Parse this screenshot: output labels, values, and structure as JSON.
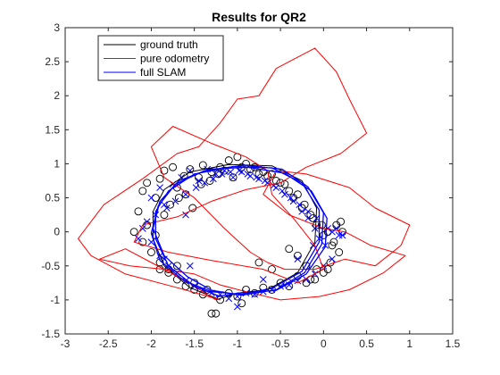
{
  "chart_data": {
    "type": "line",
    "title": "Results for QR2",
    "xlabel": "",
    "ylabel": "",
    "xlim": [
      -3,
      1.5
    ],
    "ylim": [
      -1.5,
      3
    ],
    "xticks": [
      -3,
      -2.5,
      -2,
      -1.5,
      -1,
      -0.5,
      0,
      0.5,
      1,
      1.5
    ],
    "xtick_labels": [
      "-3",
      "-2.5",
      "-2",
      "-1.5",
      "-1",
      "-0.5",
      "0",
      "0.5",
      "1",
      "1.5"
    ],
    "yticks": [
      -1.5,
      -1,
      -0.5,
      0,
      0.5,
      1,
      1.5,
      2,
      2.5,
      3
    ],
    "ytick_labels": [
      "-1.5",
      "-1",
      "-0.5",
      "0",
      "0.5",
      "1",
      "1.5",
      "2",
      "2.5",
      "3"
    ],
    "grid": false,
    "legend_position": "top-left",
    "series": [
      {
        "name": "ground truth",
        "color": "#000000",
        "style": "line",
        "x": [
          -1.2,
          -1.55,
          -1.85,
          -1.98,
          -1.98,
          -1.85,
          -1.55,
          -1.1,
          -0.6,
          -0.25,
          -0.08,
          -0.1,
          -0.3,
          -0.65,
          -1.0,
          -1.25
        ],
        "y": [
          -1.0,
          -0.82,
          -0.5,
          -0.1,
          0.3,
          0.62,
          0.88,
          0.99,
          0.97,
          0.75,
          0.35,
          -0.15,
          -0.6,
          -0.85,
          -0.9,
          -1.0
        ]
      },
      {
        "name": "pure odometry",
        "color": "#ff0000",
        "style": "line",
        "x": [
          -1.2,
          -1.7,
          -2.3,
          -2.7,
          -2.85,
          -2.55,
          -2.1,
          -1.7,
          -1.45,
          -1.2,
          -1.0,
          -0.75,
          -0.55,
          -0.1,
          0.15,
          0.3,
          0.5,
          0.2,
          -0.2,
          -0.5,
          -0.9,
          -1.3,
          -1.7,
          -2.1,
          -2.2,
          -1.8,
          -1.3,
          -0.7,
          -0.3,
          0.0,
          -0.1,
          -0.35,
          -0.6,
          -0.65,
          -0.9,
          -1.3,
          -1.75,
          -2.0,
          -1.85,
          -1.5,
          -1.15,
          -0.85,
          -0.65,
          -0.45,
          -0.1,
          0.25,
          0.6,
          0.9,
          1.0,
          0.6,
          0.3,
          -0.2,
          -0.55,
          -0.7,
          -0.4,
          0.0,
          0.25,
          0.55,
          0.95,
          0.7,
          0.3,
          -0.05,
          -0.5,
          -0.9,
          -1.2,
          -1.5,
          -1.85,
          -2.25,
          -2.6,
          -2.3,
          -2.0,
          -1.6,
          -1.25
        ],
        "y": [
          -1.0,
          -0.82,
          -0.62,
          -0.35,
          -0.1,
          0.4,
          0.78,
          1.15,
          1.25,
          1.6,
          1.95,
          2.0,
          2.4,
          2.7,
          2.35,
          1.95,
          1.45,
          1.15,
          0.95,
          0.72,
          0.62,
          0.45,
          0.22,
          0.1,
          -0.15,
          -0.3,
          -0.42,
          -0.55,
          -0.75,
          -0.55,
          -0.2,
          0.2,
          0.55,
          0.9,
          1.1,
          1.3,
          1.55,
          1.25,
          0.8,
          0.5,
          0.05,
          -0.3,
          -0.45,
          -0.55,
          -0.55,
          -0.4,
          -0.5,
          -0.2,
          0.1,
          0.35,
          0.65,
          0.85,
          0.9,
          0.55,
          0.25,
          0.05,
          0.0,
          -0.2,
          -0.35,
          -0.6,
          -0.85,
          -0.95,
          -1.0,
          -0.88,
          -0.78,
          -0.62,
          -0.55,
          -0.5,
          -0.4,
          -0.25,
          -0.45,
          -0.72,
          -1.0
        ]
      },
      {
        "name": "full SLAM",
        "color": "#0000ff",
        "style": "line",
        "x": [
          -1.2,
          -1.5,
          -1.8,
          -1.95,
          -1.95,
          -1.8,
          -1.5,
          -1.05,
          -0.6,
          -0.25,
          -0.05,
          -0.05,
          -0.25,
          -0.6,
          -0.95,
          -1.3,
          -1.62,
          -1.9,
          -2.0,
          -1.92,
          -1.72,
          -1.38,
          -0.92,
          -0.48,
          -0.18,
          0.0,
          -0.02,
          -0.22,
          -0.55,
          -0.95,
          -1.3,
          -1.58,
          -1.85,
          -1.98,
          -1.9,
          -1.68,
          -1.33,
          -0.88,
          -0.45,
          -0.14,
          0.04,
          0.02,
          -0.2,
          -0.55,
          -0.98,
          -1.25
        ],
        "y": [
          -0.95,
          -0.8,
          -0.5,
          -0.1,
          0.3,
          0.6,
          0.85,
          0.96,
          0.94,
          0.72,
          0.32,
          -0.15,
          -0.58,
          -0.83,
          -0.92,
          -0.88,
          -0.72,
          -0.42,
          -0.02,
          0.38,
          0.7,
          0.9,
          0.98,
          0.92,
          0.66,
          0.28,
          -0.18,
          -0.6,
          -0.85,
          -0.93,
          -0.86,
          -0.66,
          -0.35,
          0.05,
          0.45,
          0.75,
          0.92,
          0.95,
          0.86,
          0.6,
          0.2,
          -0.22,
          -0.62,
          -0.86,
          -0.9,
          -0.95
        ]
      }
    ],
    "markers": [
      {
        "name": "",
        "symbol": "circle",
        "color": "#000000",
        "x": [
          -2.1,
          -2.05,
          -1.95,
          -1.9,
          -1.85,
          -1.75,
          -1.7,
          -1.62,
          -1.55,
          -1.45,
          -1.4,
          -1.3,
          -1.2,
          -1.1,
          -1.0,
          -0.9,
          -0.8,
          -0.7,
          -0.6,
          -0.5,
          -0.4,
          -0.3,
          -0.22,
          -0.15,
          -0.08,
          0.0,
          0.05,
          0.12,
          0.18,
          0.2,
          0.15,
          0.08,
          0.0,
          -0.08,
          -0.15,
          -0.2,
          -0.3,
          -0.4,
          -0.5,
          -0.6,
          -0.7,
          -0.8,
          -0.9,
          -1.0,
          -1.1,
          -1.2,
          -1.3,
          -1.4,
          -1.5,
          -1.6,
          -1.7,
          -1.8,
          -1.9,
          -2.0,
          -2.1,
          -2.2,
          -2.15,
          -2.05,
          -1.95,
          -1.85,
          -1.78,
          -1.68,
          -1.6,
          -1.52,
          -1.42,
          -1.32,
          -1.22,
          -1.15,
          -1.05,
          -0.95,
          -0.85,
          -0.75,
          -0.65,
          -0.55,
          -0.45,
          -0.35,
          -0.25,
          -0.12,
          -0.02,
          0.1,
          0.22,
          -1.9,
          -1.8,
          -1.7,
          -1.5,
          -1.35,
          -0.4,
          -0.3,
          -0.2,
          -0.1,
          0.05,
          -1.25,
          -0.95,
          -0.75,
          -0.6
        ],
        "y": [
          0.6,
          0.72,
          0.5,
          0.78,
          0.9,
          0.95,
          0.65,
          0.82,
          0.92,
          0.8,
          0.98,
          0.88,
          0.95,
          1.05,
          1.1,
          1.0,
          0.95,
          0.88,
          0.85,
          0.72,
          0.6,
          0.55,
          0.4,
          0.25,
          0.1,
          -0.05,
          0.0,
          -0.15,
          -0.3,
          0.15,
          0.1,
          -0.45,
          -0.6,
          -0.55,
          -0.7,
          -0.75,
          -0.65,
          -0.8,
          -0.75,
          -0.85,
          -0.82,
          -0.9,
          -0.85,
          -0.95,
          -0.9,
          -1.0,
          -1.2,
          -0.92,
          -0.85,
          -0.8,
          -0.7,
          -0.55,
          -0.45,
          -0.3,
          -0.15,
          0.0,
          0.3,
          0.1,
          -0.05,
          0.25,
          0.4,
          0.5,
          0.55,
          0.35,
          0.7,
          0.75,
          0.85,
          0.9,
          0.8,
          0.95,
          0.92,
          0.85,
          0.82,
          0.75,
          0.7,
          0.5,
          0.35,
          0.2,
          0.1,
          -0.2,
          0.0,
          -0.55,
          -0.6,
          -0.5,
          -0.75,
          -0.85,
          -0.25,
          -0.35,
          -0.5,
          -0.7,
          -0.55,
          -1.2,
          -1.05,
          -0.45,
          -0.55
        ]
      },
      {
        "name": "",
        "symbol": "cross",
        "color": "#0000ff",
        "x": [
          -2.0,
          -1.9,
          -1.85,
          -1.75,
          -1.65,
          -1.55,
          -1.45,
          -1.35,
          -1.25,
          -1.15,
          -1.05,
          -0.95,
          -0.85,
          -0.75,
          -0.65,
          -0.55,
          -0.45,
          -0.35,
          -0.25,
          -0.18,
          -0.1,
          -0.05,
          0.02,
          0.1,
          0.15,
          0.22,
          0.1,
          0.0,
          -0.1,
          -0.2,
          -0.3,
          -0.4,
          -0.5,
          -0.6,
          -0.7,
          -0.8,
          -0.9,
          -1.0,
          -1.1,
          -1.2,
          -1.3,
          -1.4,
          -1.5,
          -1.6,
          -1.7,
          -1.8,
          -1.9,
          -2.0,
          -2.1,
          -2.05,
          -1.95,
          -1.82,
          -1.72,
          -1.6,
          -1.48,
          -1.38,
          -1.28,
          -1.18,
          -1.08,
          -0.98,
          -0.88,
          -0.78,
          -0.68,
          -0.58,
          -0.48,
          -0.38,
          -0.28,
          -0.18,
          -0.08,
          0.05,
          0.18,
          -1.0,
          -0.7,
          -0.3,
          -1.55,
          -1.85,
          -2.15,
          -0.12,
          -1.6
        ],
        "y": [
          0.5,
          0.65,
          0.4,
          0.7,
          0.8,
          0.9,
          0.75,
          0.92,
          0.85,
          0.9,
          0.8,
          0.88,
          0.82,
          0.78,
          0.72,
          0.65,
          0.55,
          0.45,
          0.3,
          0.2,
          0.05,
          -0.1,
          -0.2,
          0.0,
          0.05,
          -0.05,
          -0.4,
          -0.5,
          -0.62,
          -0.7,
          -0.72,
          -0.78,
          -0.8,
          -0.85,
          -0.88,
          -0.92,
          -0.9,
          -0.95,
          -0.98,
          -0.92,
          -0.9,
          -0.85,
          -0.8,
          -0.72,
          -0.6,
          -0.5,
          -0.35,
          -0.15,
          0.05,
          0.15,
          0.25,
          0.35,
          0.45,
          0.55,
          0.65,
          0.72,
          0.78,
          0.85,
          0.88,
          0.9,
          0.85,
          0.8,
          0.75,
          0.68,
          0.6,
          0.5,
          0.4,
          0.3,
          0.2,
          0.05,
          -0.05,
          -1.1,
          -0.7,
          -0.4,
          -0.5,
          -0.4,
          -0.1,
          -0.2,
          0.25
        ]
      }
    ]
  }
}
